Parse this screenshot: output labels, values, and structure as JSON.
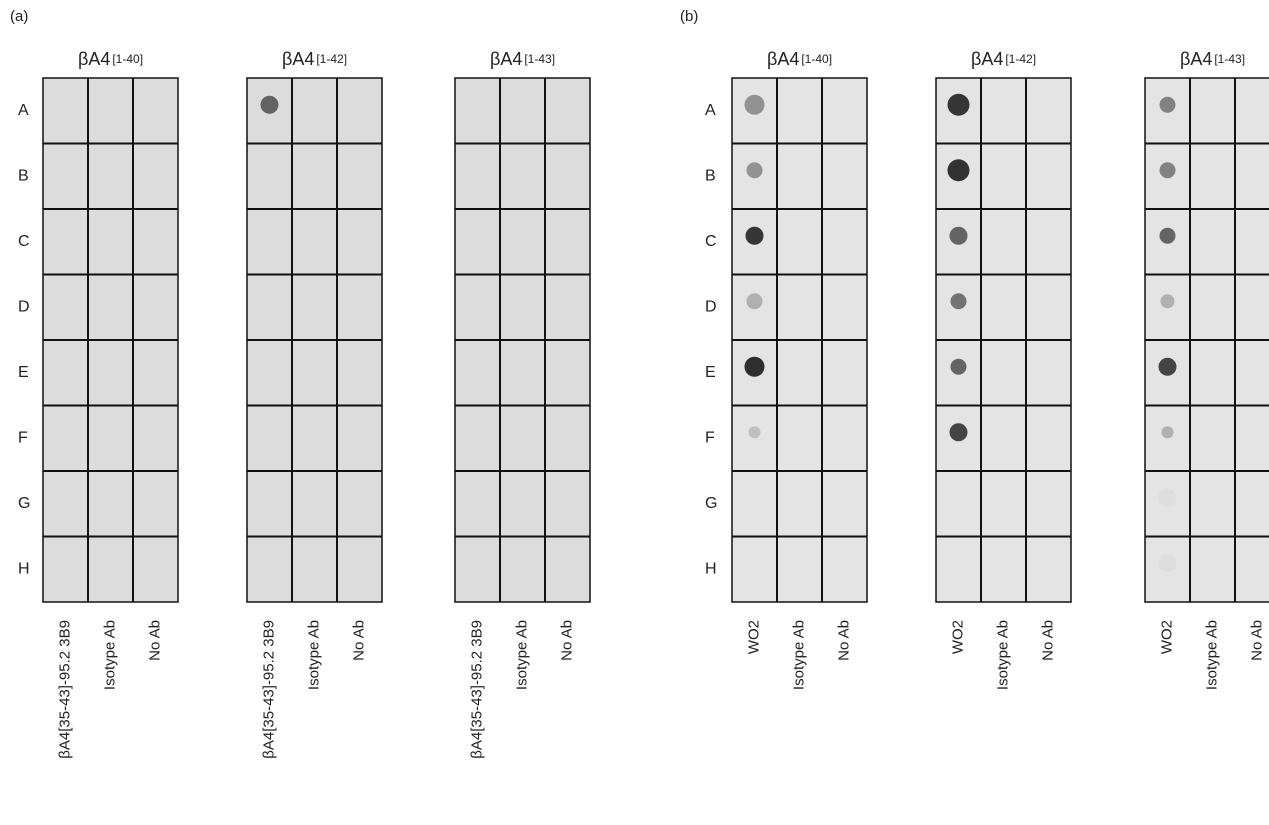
{
  "panels": [
    {
      "label": "(a)",
      "rows": [
        "A",
        "B",
        "C",
        "D",
        "E",
        "F",
        "G",
        "H"
      ],
      "blots": [
        {
          "title": "βA4",
          "range": "[1-40]",
          "columns": [
            "βA4[35-43]-95.2 3B9",
            "Isotype Ab",
            "No Ab"
          ]
        },
        {
          "title": "βA4",
          "range": "[1-42]",
          "columns": [
            "βA4[35-43]-95.2 3B9",
            "Isotype Ab",
            "No Ab"
          ]
        },
        {
          "title": "βA4",
          "range": "[1-43]",
          "columns": [
            "βA4[35-43]-95.2 3B9",
            "Isotype Ab",
            "No Ab"
          ]
        }
      ]
    },
    {
      "label": "(b)",
      "rows": [
        "A",
        "B",
        "C",
        "D",
        "E",
        "F",
        "G",
        "H"
      ],
      "blots": [
        {
          "title": "βA4",
          "range": "[1-40]",
          "columns": [
            "WO2",
            "Isotype Ab",
            "No Ab"
          ]
        },
        {
          "title": "βA4",
          "range": "[1-42]",
          "columns": [
            "WO2",
            "Isotype Ab",
            "No Ab"
          ]
        },
        {
          "title": "βA4",
          "range": "[1-43]",
          "columns": [
            "WO2",
            "Isotype Ab",
            "No Ab"
          ]
        }
      ]
    }
  ]
}
